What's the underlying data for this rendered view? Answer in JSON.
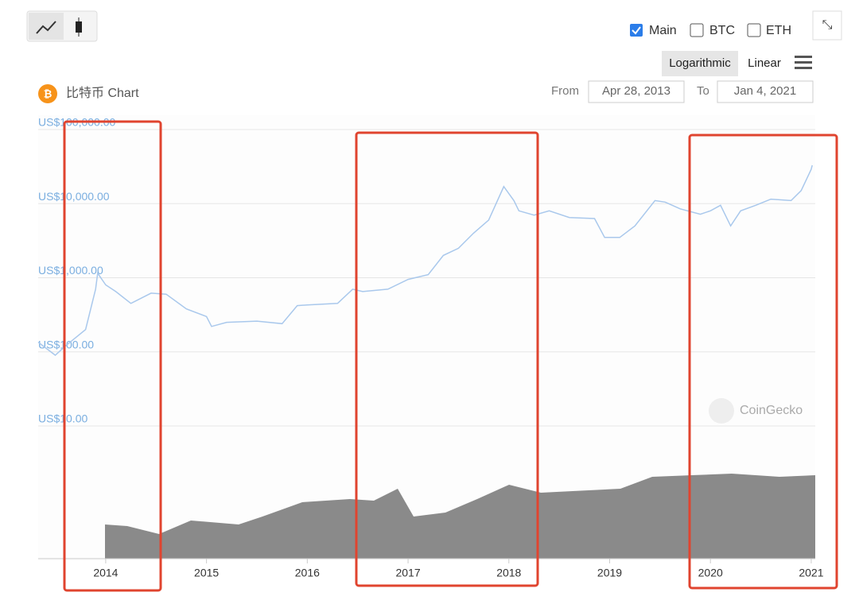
{
  "ui": {
    "main": "Main",
    "btc": "BTC",
    "eth": "ETH",
    "log": "Logarithmic",
    "linear": "Linear",
    "from": "From",
    "from_date": "Apr 28, 2013",
    "to": "To",
    "to_date": "Jan 4, 2021",
    "watermark": "CoinGecko"
  },
  "chart_data": {
    "type": "line",
    "title": "比特币 Chart",
    "log_scale": true,
    "grid": true,
    "xlim": [
      2013.33,
      2021.04
    ],
    "xticks": [
      2014,
      2015,
      2016,
      2017,
      2018,
      2019,
      2020,
      2021
    ],
    "ylim": [
      10,
      100000
    ],
    "yticks": [
      {
        "value": 10,
        "label": "US$10.00"
      },
      {
        "value": 100,
        "label": "US$100.00"
      },
      {
        "value": 1000,
        "label": "US$1,000.00"
      },
      {
        "value": 10000,
        "label": "US$10,000.00"
      },
      {
        "value": 100000,
        "label": "US$100,000.00"
      }
    ],
    "series": [
      {
        "color": "#a9c8ec",
        "x": [
          2013.33,
          2013.5,
          2013.6,
          2013.8,
          2013.9,
          2013.92,
          2014.0,
          2014.1,
          2014.25,
          2014.45,
          2014.6,
          2014.8,
          2015.0,
          2015.05,
          2015.2,
          2015.5,
          2015.75,
          2015.9,
          2016.0,
          2016.3,
          2016.45,
          2016.55,
          2016.8,
          2017.0,
          2017.2,
          2017.35,
          2017.5,
          2017.65,
          2017.8,
          2017.95,
          2018.05,
          2018.1,
          2018.25,
          2018.4,
          2018.6,
          2018.85,
          2018.95,
          2019.1,
          2019.25,
          2019.45,
          2019.55,
          2019.7,
          2019.9,
          2020.0,
          2020.1,
          2020.2,
          2020.3,
          2020.45,
          2020.6,
          2020.8,
          2020.9,
          2021.0,
          2021.01
        ],
        "values": [
          135,
          90,
          120,
          200,
          700,
          1150,
          800,
          650,
          450,
          620,
          600,
          380,
          300,
          220,
          250,
          260,
          240,
          420,
          430,
          450,
          700,
          650,
          700,
          950,
          1100,
          2000,
          2500,
          4000,
          6000,
          17000,
          11000,
          8000,
          7000,
          8000,
          6500,
          6300,
          3500,
          3500,
          5000,
          11000,
          10500,
          8500,
          7200,
          8000,
          9500,
          5000,
          8000,
          9500,
          11500,
          11000,
          15000,
          29000,
          33000
        ]
      }
    ]
  }
}
